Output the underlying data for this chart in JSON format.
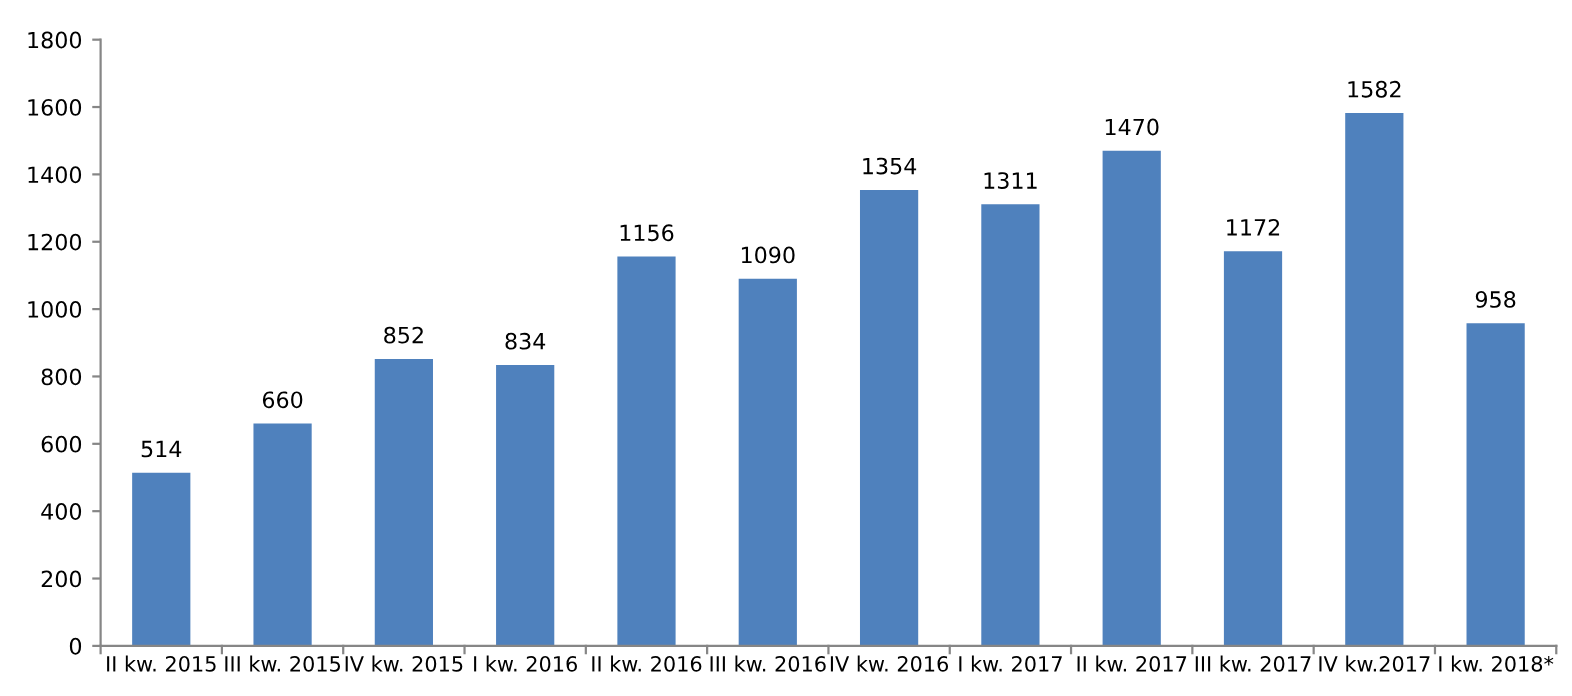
{
  "chart_data": {
    "type": "bar",
    "categories": [
      "II kw. 2015",
      "III kw. 2015",
      "IV kw. 2015",
      "I kw. 2016",
      "II kw. 2016",
      "III kw. 2016",
      "IV kw. 2016",
      "I kw. 2017",
      "II kw. 2017",
      "III kw. 2017",
      "IV kw.2017",
      "I kw. 2018*"
    ],
    "values": [
      514,
      660,
      852,
      834,
      1156,
      1090,
      1354,
      1311,
      1470,
      1172,
      1582,
      958
    ],
    "color": "#4f81bd",
    "ylim": [
      0,
      1800
    ],
    "yticks": [
      0,
      200,
      400,
      600,
      800,
      1000,
      1200,
      1400,
      1600,
      1800
    ],
    "data_labels": true,
    "grid": false,
    "legend": false
  }
}
